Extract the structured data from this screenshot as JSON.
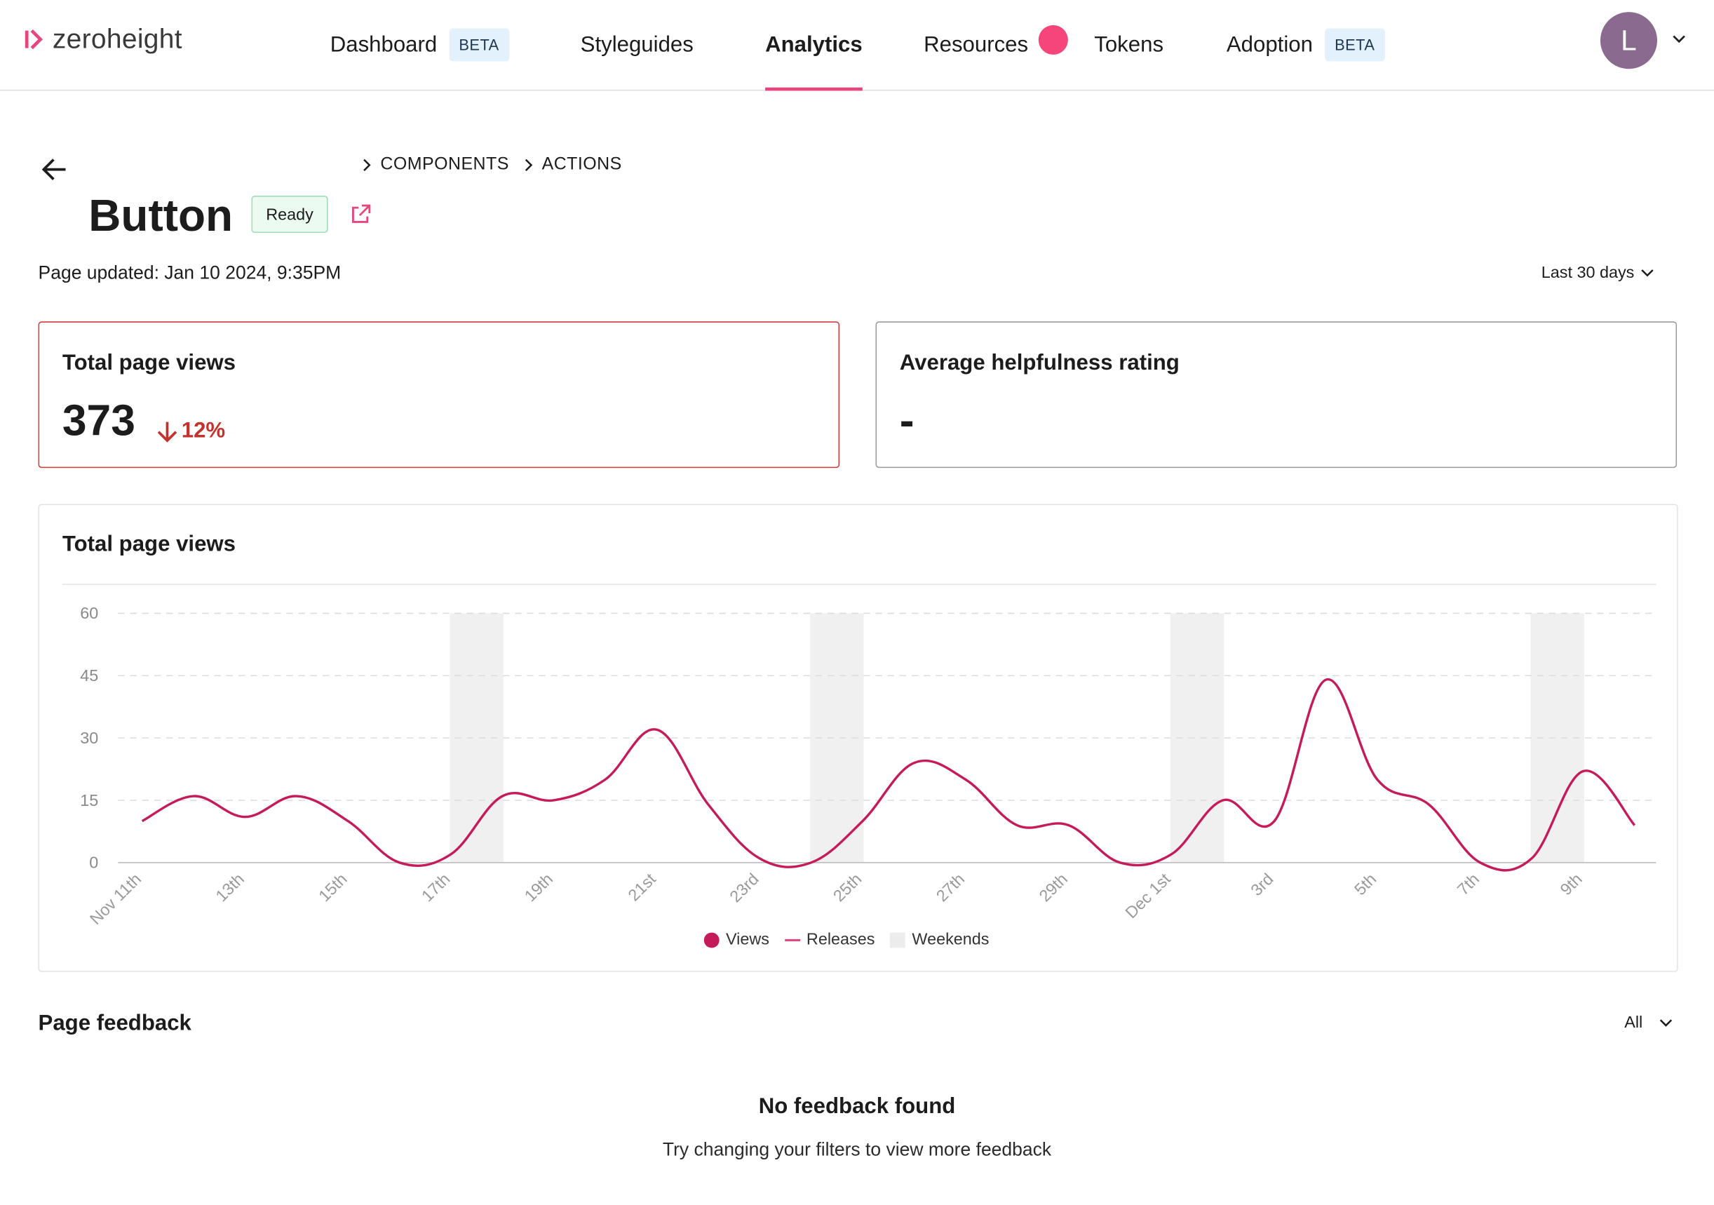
{
  "brand": {
    "name": "zeroheight"
  },
  "nav": {
    "items": [
      {
        "label": "Dashboard",
        "badge": "BETA"
      },
      {
        "label": "Styleguides"
      },
      {
        "label": "Analytics"
      },
      {
        "label": "Resources"
      },
      {
        "label": "Tokens"
      },
      {
        "label": "Adoption",
        "badge": "BETA"
      }
    ],
    "active": "Analytics"
  },
  "user": {
    "initial": "L"
  },
  "breadcrumb": [
    "COMPONENTS",
    "ACTIONS"
  ],
  "page": {
    "title": "Button",
    "status": "Ready",
    "updated": "Page updated: Jan 10 2024, 9:35PM",
    "range": "Last 30 days"
  },
  "stats": {
    "views": {
      "title": "Total page views",
      "value": "373",
      "delta": "12%"
    },
    "rating": {
      "title": "Average helpfulness rating",
      "value": "-"
    }
  },
  "chart_data": {
    "type": "line",
    "title": "Total page views",
    "ylim": [
      0,
      60
    ],
    "yticks": [
      0,
      15,
      30,
      45,
      60
    ],
    "grid": true,
    "xtick_labels": [
      "Nov 11th",
      "13th",
      "15th",
      "17th",
      "19th",
      "21st",
      "23rd",
      "25th",
      "27th",
      "29th",
      "Dec 1st",
      "3rd",
      "5th",
      "7th",
      "9th"
    ],
    "series": [
      {
        "name": "Views",
        "color": "#c51b5a",
        "x": [
          "Nov 11",
          "Nov 12",
          "Nov 13",
          "Nov 14",
          "Nov 15",
          "Nov 16",
          "Nov 17",
          "Nov 18",
          "Nov 19",
          "Nov 20",
          "Nov 21",
          "Nov 22",
          "Nov 23",
          "Nov 24",
          "Nov 25",
          "Nov 26",
          "Nov 27",
          "Nov 28",
          "Nov 29",
          "Nov 30",
          "Dec 1",
          "Dec 2",
          "Dec 3",
          "Dec 4",
          "Dec 5",
          "Dec 6",
          "Dec 7",
          "Dec 8",
          "Dec 9",
          "Dec 10"
        ],
        "values": [
          10,
          16,
          11,
          16,
          10,
          0,
          2,
          16,
          15,
          20,
          32,
          14,
          1,
          0,
          10,
          24,
          20,
          9,
          9,
          0,
          2,
          15,
          10,
          44,
          20,
          14,
          0,
          1,
          22,
          9
        ]
      }
    ],
    "weekends": [
      [
        "Nov 17",
        "Nov 18"
      ],
      [
        "Nov 24",
        "Nov 25"
      ],
      [
        "Dec 1",
        "Dec 2"
      ],
      [
        "Dec 8",
        "Dec 9"
      ]
    ],
    "legend": [
      {
        "label": "Views",
        "color": "#c51b5a"
      },
      {
        "label": "Releases",
        "color": "#e7457d"
      },
      {
        "label": "Weekends",
        "color": "#ececec"
      }
    ],
    "legend_position": "bottom"
  },
  "feedback": {
    "title": "Page feedback",
    "filter": "All",
    "empty_title": "No feedback found",
    "empty_sub": "Try changing your filters to view more feedback"
  }
}
